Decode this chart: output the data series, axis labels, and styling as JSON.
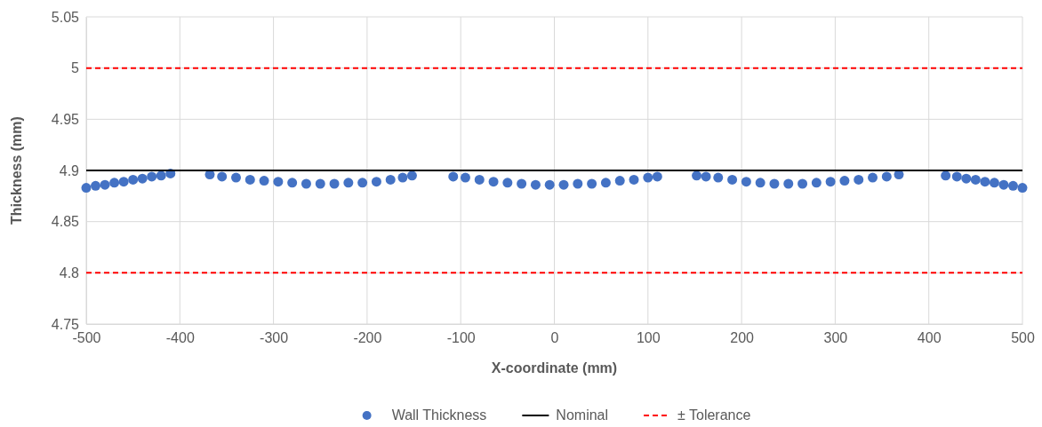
{
  "chart_data": {
    "type": "scatter",
    "xlabel": "X-coordinate (mm)",
    "ylabel": "Thickness (mm)",
    "xlim": [
      -500,
      500
    ],
    "xticks": [
      -500,
      -400,
      -300,
      -200,
      -100,
      0,
      100,
      200,
      300,
      400,
      500
    ],
    "ylim": [
      4.75,
      5.05
    ],
    "yticks": [
      4.75,
      4.8,
      4.85,
      4.9,
      4.95,
      5,
      5.05
    ],
    "grid": true,
    "legend": "bottom",
    "series": [
      {
        "name": "Wall Thickness",
        "marker": "circle",
        "color": "#4472c4",
        "x": [
          -500,
          -490,
          -480,
          -470,
          -460,
          -450,
          -440,
          -430,
          -420,
          -410,
          -368,
          -355,
          -340,
          -325,
          -310,
          -295,
          -280,
          -265,
          -250,
          -235,
          -220,
          -205,
          -190,
          -175,
          -162,
          -152,
          -108,
          -95,
          -80,
          -65,
          -50,
          -35,
          -20,
          -5,
          10,
          25,
          40,
          55,
          70,
          85,
          100,
          110,
          152,
          162,
          175,
          190,
          205,
          220,
          235,
          250,
          265,
          280,
          295,
          310,
          325,
          340,
          355,
          368,
          418,
          430,
          440,
          450,
          460,
          470,
          480,
          490,
          500
        ],
        "values": [
          4.883,
          4.885,
          4.886,
          4.888,
          4.889,
          4.891,
          4.892,
          4.894,
          4.895,
          4.897,
          4.896,
          4.894,
          4.893,
          4.891,
          4.89,
          4.889,
          4.888,
          4.887,
          4.887,
          4.887,
          4.888,
          4.888,
          4.889,
          4.891,
          4.893,
          4.895,
          4.894,
          4.893,
          4.891,
          4.889,
          4.888,
          4.887,
          4.886,
          4.886,
          4.886,
          4.887,
          4.887,
          4.888,
          4.89,
          4.891,
          4.893,
          4.894,
          4.895,
          4.894,
          4.893,
          4.891,
          4.889,
          4.888,
          4.887,
          4.887,
          4.887,
          4.888,
          4.889,
          4.89,
          4.891,
          4.893,
          4.894,
          4.896,
          4.895,
          4.894,
          4.892,
          4.891,
          4.889,
          4.888,
          4.886,
          4.885,
          4.883
        ]
      },
      {
        "name": "Nominal",
        "type": "line",
        "marker": "none",
        "color": "#000000",
        "line_style": "solid",
        "x": [
          -500,
          500
        ],
        "values": [
          4.9,
          4.9
        ]
      },
      {
        "name": "± Tolerance",
        "type": "line",
        "marker": "none",
        "color": "#ff0000",
        "line_style": "dashed",
        "x": [
          -500,
          500
        ],
        "values": [
          5,
          5
        ]
      },
      {
        "type": "line",
        "marker": "none",
        "color": "#ff0000",
        "line_style": "dashed",
        "x": [
          -500,
          500
        ],
        "values": [
          4.8,
          4.8
        ]
      }
    ]
  }
}
